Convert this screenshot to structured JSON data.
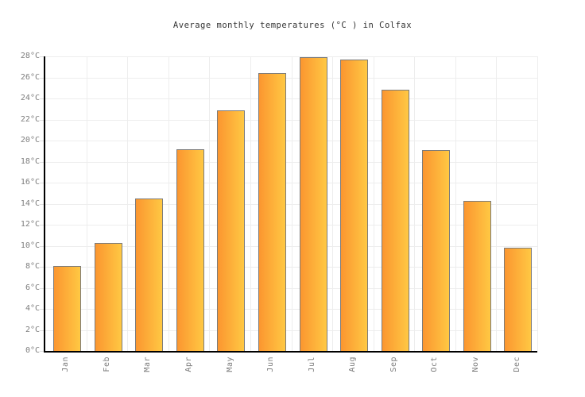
{
  "title": "Average monthly temperatures (°C ) in Colfax",
  "chart_data": {
    "type": "bar",
    "title": "Average monthly temperatures (°C ) in Colfax",
    "categories": [
      "Jan",
      "Feb",
      "Mar",
      "Apr",
      "May",
      "Jun",
      "Jul",
      "Aug",
      "Sep",
      "Oct",
      "Nov",
      "Dec"
    ],
    "values": [
      8.1,
      10.3,
      14.5,
      19.2,
      22.9,
      26.4,
      27.9,
      27.7,
      24.8,
      19.1,
      14.3,
      9.8
    ],
    "unit": "°C",
    "xlabel": "",
    "ylabel": "",
    "ylim": [
      0,
      28
    ],
    "ytick_step": 2,
    "ytick_labels": [
      "0°C",
      "2°C",
      "4°C",
      "6°C",
      "8°C",
      "10°C",
      "12°C",
      "14°C",
      "16°C",
      "18°C",
      "20°C",
      "22°C",
      "24°C",
      "26°C",
      "28°C"
    ],
    "grid": true,
    "legend": false
  },
  "colors": {
    "background": "#FFFFFF",
    "title_text": "#333333",
    "axis": "#000000",
    "grid": "#EDEDED",
    "tick": "#DFDFDF",
    "tick_label": "#7D7D7D",
    "bar_border": "#7B7B7B",
    "bar_gradient_left": "#FB9630",
    "bar_gradient_right": "#FFC843"
  }
}
